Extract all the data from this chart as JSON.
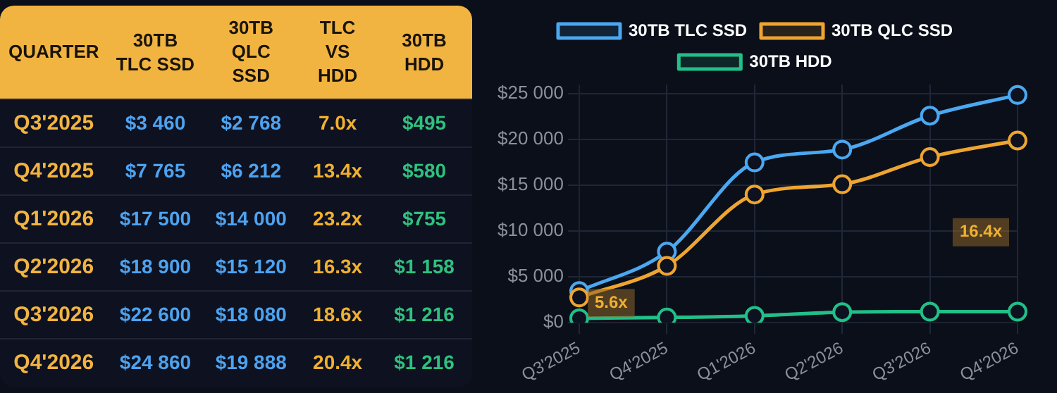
{
  "chart_data": [
    {
      "type": "other",
      "xlabel": "QUARTER",
      "categories": [
        "Q3'2025",
        "Q4'2025",
        "Q1'2026",
        "Q2'2026",
        "Q3'2026",
        "Q4'2026"
      ],
      "series": [
        {
          "name": "30TB TLC SSD",
          "values": [
            3460,
            7765,
            17500,
            18900,
            22600,
            24860
          ],
          "value_labels": [
            "$3 460",
            "$7 765",
            "$17 500",
            "$18 900",
            "$22 600",
            "$24 860"
          ]
        },
        {
          "name": "30TB QLC SSD",
          "values": [
            2768,
            6212,
            14000,
            15120,
            18080,
            19888
          ],
          "value_labels": [
            "$2 768",
            "$6 212",
            "$14 000",
            "$15 120",
            "$18 080",
            "$19 888"
          ]
        },
        {
          "name": "TLC VS HDD",
          "values": [
            7.0,
            13.4,
            23.2,
            16.3,
            18.6,
            20.4
          ],
          "value_labels": [
            "7.0x",
            "13.4x",
            "23.2x",
            "16.3x",
            "18.6x",
            "20.4x"
          ]
        },
        {
          "name": "30TB HDD",
          "values": [
            495,
            580,
            755,
            1158,
            1216,
            1216
          ],
          "value_labels": [
            "$495",
            "$580",
            "$755",
            "$1 158",
            "$1 216",
            "$1 216"
          ]
        }
      ]
    },
    {
      "type": "line",
      "categories": [
        "Q3'2025",
        "Q4'2025",
        "Q1'2026",
        "Q2'2026",
        "Q3'2026",
        "Q4'2026"
      ],
      "series": [
        {
          "name": "30TB TLC SSD",
          "color": "#4aa8f0",
          "values": [
            3460,
            7765,
            17500,
            18900,
            22600,
            24860
          ]
        },
        {
          "name": "30TB QLC SSD",
          "color": "#eea530",
          "values": [
            2768,
            6212,
            14000,
            15120,
            18080,
            19888
          ]
        },
        {
          "name": "30TB HDD",
          "color": "#22bf88",
          "values": [
            495,
            580,
            755,
            1158,
            1216,
            1216
          ]
        }
      ],
      "ylim": [
        0,
        26000
      ],
      "yticks": [
        {
          "value": 0,
          "label": "$0"
        },
        {
          "value": 5000,
          "label": "$5 000"
        },
        {
          "value": 10000,
          "label": "$10 000"
        },
        {
          "value": 15000,
          "label": "$15 000"
        },
        {
          "value": 20000,
          "label": "$20 000"
        },
        {
          "value": 25000,
          "label": "$25 000"
        }
      ],
      "grid": true,
      "legend": "top",
      "marker": "circle",
      "line_style": "solid",
      "annotations": [
        "5.6x",
        "16.4x"
      ]
    }
  ]
}
